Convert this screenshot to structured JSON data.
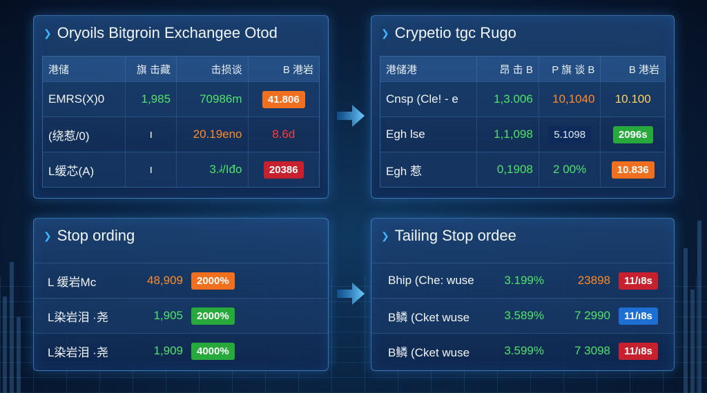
{
  "panels": {
    "exchange": {
      "title": "Oryoils Bitgroin Exchangee Otod",
      "headers": [
        "港储",
        "旗 击藏",
        "击损谈",
        "B 港岩"
      ],
      "rows": [
        {
          "name": "EMRS(X)0",
          "price": "1,985",
          "volume": "70986m",
          "change": "41.806"
        },
        {
          "name": "(绕惹/0)",
          "price": "ı",
          "volume": "20.19eno",
          "change": "8.6d"
        },
        {
          "name": "L缓芯(A)",
          "price": "ı",
          "volume": "3.ᶨ/Iđo",
          "change": "20386"
        }
      ]
    },
    "crypto": {
      "title": "Crypetio tgc Rugo",
      "headers": [
        "港储港",
        "昂 击 B",
        "P 旗 谈 B",
        "B 港岩"
      ],
      "rows": [
        {
          "name": "Cnsp (Cle! - e",
          "price": "1,3.006",
          "volume": "10,1040",
          "change": "10.100"
        },
        {
          "name": "Egh lse",
          "price": "1,1,098",
          "volume": "5.1098",
          "change": "2096s"
        },
        {
          "name": "Egh 惹",
          "price": "0,1908",
          "volume": "2 00%",
          "change": "10.836"
        }
      ]
    },
    "stop": {
      "title": "Stop ording",
      "rows": [
        {
          "name": "L 缓岩Mc",
          "price": "48,909",
          "badge": "2000%"
        },
        {
          "name": "L染岩泪 ·尧",
          "price": "1,905",
          "badge": "2000%"
        },
        {
          "name": "L染岩泪 ·尧",
          "price": "1,909",
          "badge": "4000%"
        }
      ]
    },
    "trailing": {
      "title": "Tailing Stop ordee",
      "rows": [
        {
          "name": "Bhip (Che: wuse",
          "pct": "3.199%",
          "val": "23898",
          "badge": "11/ı8s"
        },
        {
          "name": "B鳞 (Cket wuse",
          "pct": "3.589%",
          "val": "7 2990",
          "badge": "11/ı8s"
        },
        {
          "name": "B鳞 (Cket wuse",
          "pct": "3.599%",
          "val": "7 3098",
          "badge": "11/ı8s"
        }
      ]
    }
  },
  "colors": {
    "green": "#4fe36a",
    "orange": "#ff8a2a",
    "red": "#ff3b3b",
    "accent": "#3fb6ff"
  },
  "icons": [
    "arrow-right-icon",
    "title-marker-icon"
  ]
}
